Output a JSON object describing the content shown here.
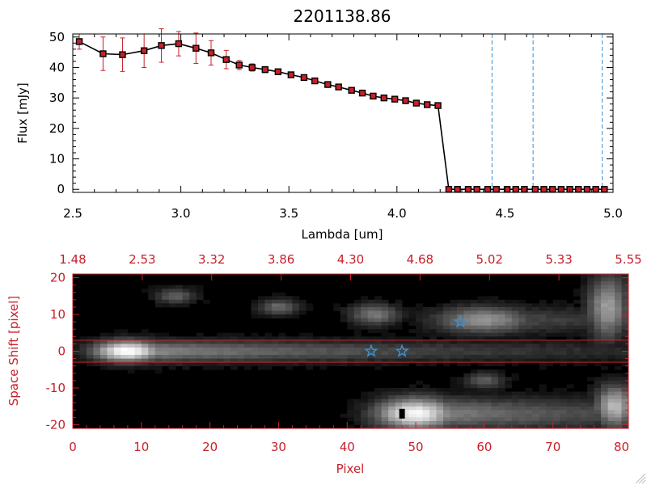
{
  "chart_data": [
    {
      "type": "line",
      "title": "2201138.86",
      "xlabel": "Lambda [um]",
      "ylabel": "Flux [mJy]",
      "xlim": [
        2.5,
        5.0
      ],
      "ylim": [
        -1,
        51
      ],
      "xticks": [
        "2.5",
        "3.0",
        "3.5",
        "4.0",
        "4.5",
        "5.0"
      ],
      "xtick_values": [
        2.5,
        3.0,
        3.5,
        4.0,
        4.5,
        5.0
      ],
      "yticks": [
        "0",
        "10",
        "20",
        "30",
        "40",
        "50"
      ],
      "ytick_values": [
        0,
        10,
        20,
        30,
        40,
        50
      ],
      "line_color": "#000000",
      "marker_color": "#c8202a",
      "errorbar_color": "#c8202a",
      "vlines": [
        4.44,
        4.63,
        4.95
      ],
      "vline_color": "#3a8fd0",
      "series": [
        {
          "x": [
            2.53,
            2.64,
            2.73,
            2.83,
            2.91,
            2.99,
            3.07,
            3.14,
            3.21,
            3.27,
            3.33,
            3.39,
            3.45,
            3.51,
            3.57,
            3.62,
            3.68,
            3.73,
            3.79,
            3.84,
            3.89,
            3.94,
            3.99,
            4.04,
            4.09,
            4.14,
            4.19,
            4.24,
            4.28,
            4.33,
            4.37,
            4.42,
            4.46,
            4.51,
            4.55,
            4.59,
            4.64,
            4.68,
            4.72,
            4.76,
            4.8,
            4.84,
            4.88,
            4.92,
            4.96
          ],
          "y": [
            48.5,
            44.5,
            44.2,
            45.5,
            47.2,
            47.8,
            46.3,
            44.8,
            42.6,
            40.8,
            40.0,
            39.3,
            38.6,
            37.6,
            36.7,
            35.6,
            34.4,
            33.6,
            32.5,
            31.6,
            30.6,
            30.0,
            29.6,
            29.1,
            28.3,
            27.8,
            27.5,
            0,
            0,
            0,
            0,
            0,
            0,
            0,
            0,
            0,
            0,
            0,
            0,
            0,
            0,
            0,
            0,
            0,
            0
          ],
          "yerr": [
            2.5,
            5.5,
            5.5,
            5.5,
            5.5,
            4.0,
            5.0,
            4.0,
            3.0,
            1.5,
            1.2,
            1.0,
            0.8,
            0.7,
            0.6,
            0.6,
            0.6,
            0.5,
            0.5,
            0.5,
            0.5,
            0.5,
            0.5,
            0.5,
            0.5,
            0.5,
            0.5,
            0,
            0,
            0,
            0,
            0,
            0,
            0,
            0,
            0,
            0,
            0,
            0,
            0,
            0,
            0,
            0,
            0,
            0
          ]
        }
      ]
    },
    {
      "type": "heatmap",
      "xlabel": "Pixel",
      "ylabel": "Space Shift [pixel]",
      "xlim": [
        0,
        81
      ],
      "ylim": [
        -21,
        21
      ],
      "xticks": [
        "0",
        "10",
        "20",
        "30",
        "40",
        "50",
        "60",
        "70",
        "80"
      ],
      "xtick_values": [
        0,
        10,
        20,
        30,
        40,
        50,
        60,
        70,
        80
      ],
      "yticks": [
        "-20",
        "-10",
        "0",
        "10",
        "20"
      ],
      "ytick_values": [
        -20,
        -10,
        0,
        10,
        20
      ],
      "top_ticks": [
        "1.48",
        "2.53",
        "3.32",
        "3.86",
        "4.30",
        "4.68",
        "5.02",
        "5.33",
        "5.55"
      ],
      "axis_color": "#c8202a",
      "hlines": [
        3,
        -3
      ],
      "hline_color": "#c8202a",
      "stars": [
        {
          "x": 43.5,
          "y": 0
        },
        {
          "x": 48,
          "y": 0
        },
        {
          "x": 56.5,
          "y": 8
        }
      ],
      "star_color": "#3a8fd0",
      "sources": [
        {
          "x": 8,
          "y": 0,
          "sx": 3.5,
          "sy": 2.0,
          "amp": 1.0,
          "tail": 40
        },
        {
          "x": 60,
          "y": 8.5,
          "sx": 5,
          "sy": 2.5,
          "amp": 0.55,
          "tail": 25
        },
        {
          "x": 50,
          "y": -17,
          "sx": 4,
          "sy": 3,
          "amp": 0.95,
          "tail": 30
        },
        {
          "x": 15,
          "y": 15,
          "sx": 2,
          "sy": 1.5,
          "amp": 0.35,
          "tail": 0
        },
        {
          "x": 30,
          "y": 12,
          "sx": 2,
          "sy": 1.5,
          "amp": 0.4,
          "tail": 0
        },
        {
          "x": 44,
          "y": 10,
          "sx": 2.5,
          "sy": 2,
          "amp": 0.45,
          "tail": 0
        },
        {
          "x": 60,
          "y": -8,
          "sx": 2,
          "sy": 1.5,
          "amp": 0.35,
          "tail": 0
        },
        {
          "x": 78,
          "y": 12,
          "sx": 2,
          "sy": 6,
          "amp": 0.6,
          "tail": 0
        },
        {
          "x": 79,
          "y": -15,
          "sx": 2,
          "sy": 4,
          "amp": 0.7,
          "tail": 0
        }
      ],
      "black_marker": {
        "x": 48,
        "y": -17
      }
    }
  ]
}
